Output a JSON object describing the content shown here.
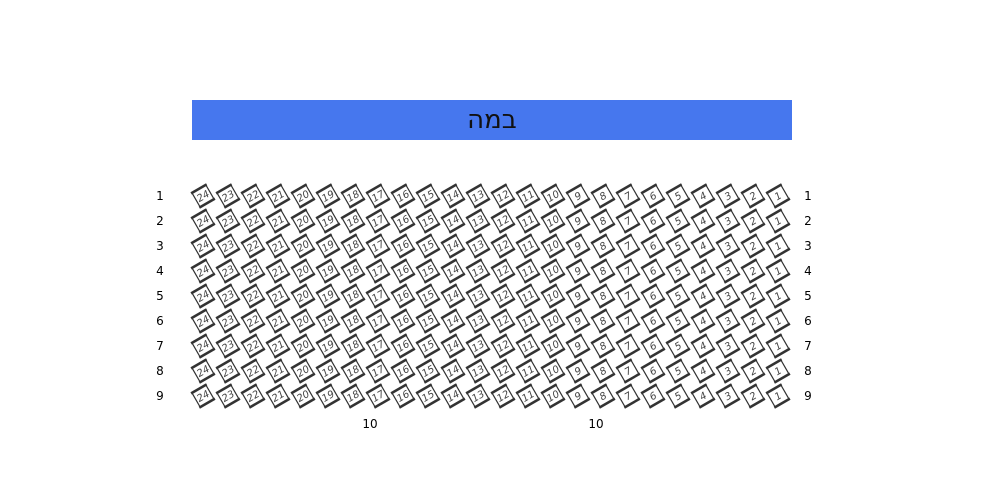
{
  "stage": {
    "label": "במה",
    "color": "#4677ee"
  },
  "rows": [
    "1",
    "2",
    "3",
    "4",
    "5",
    "6",
    "7",
    "8",
    "9"
  ],
  "seat_numbers": [
    "24",
    "23",
    "22",
    "21",
    "20",
    "19",
    "18",
    "17",
    "16",
    "15",
    "14",
    "13",
    "12",
    "11",
    "10",
    "9",
    "8",
    "7",
    "6",
    "5",
    "4",
    "3",
    "2",
    "1"
  ],
  "section_labels": [
    "10",
    "10"
  ],
  "colors": {
    "seat_border": "#333333",
    "seat_fill": "#ffffff",
    "seat_text": "#444444"
  }
}
